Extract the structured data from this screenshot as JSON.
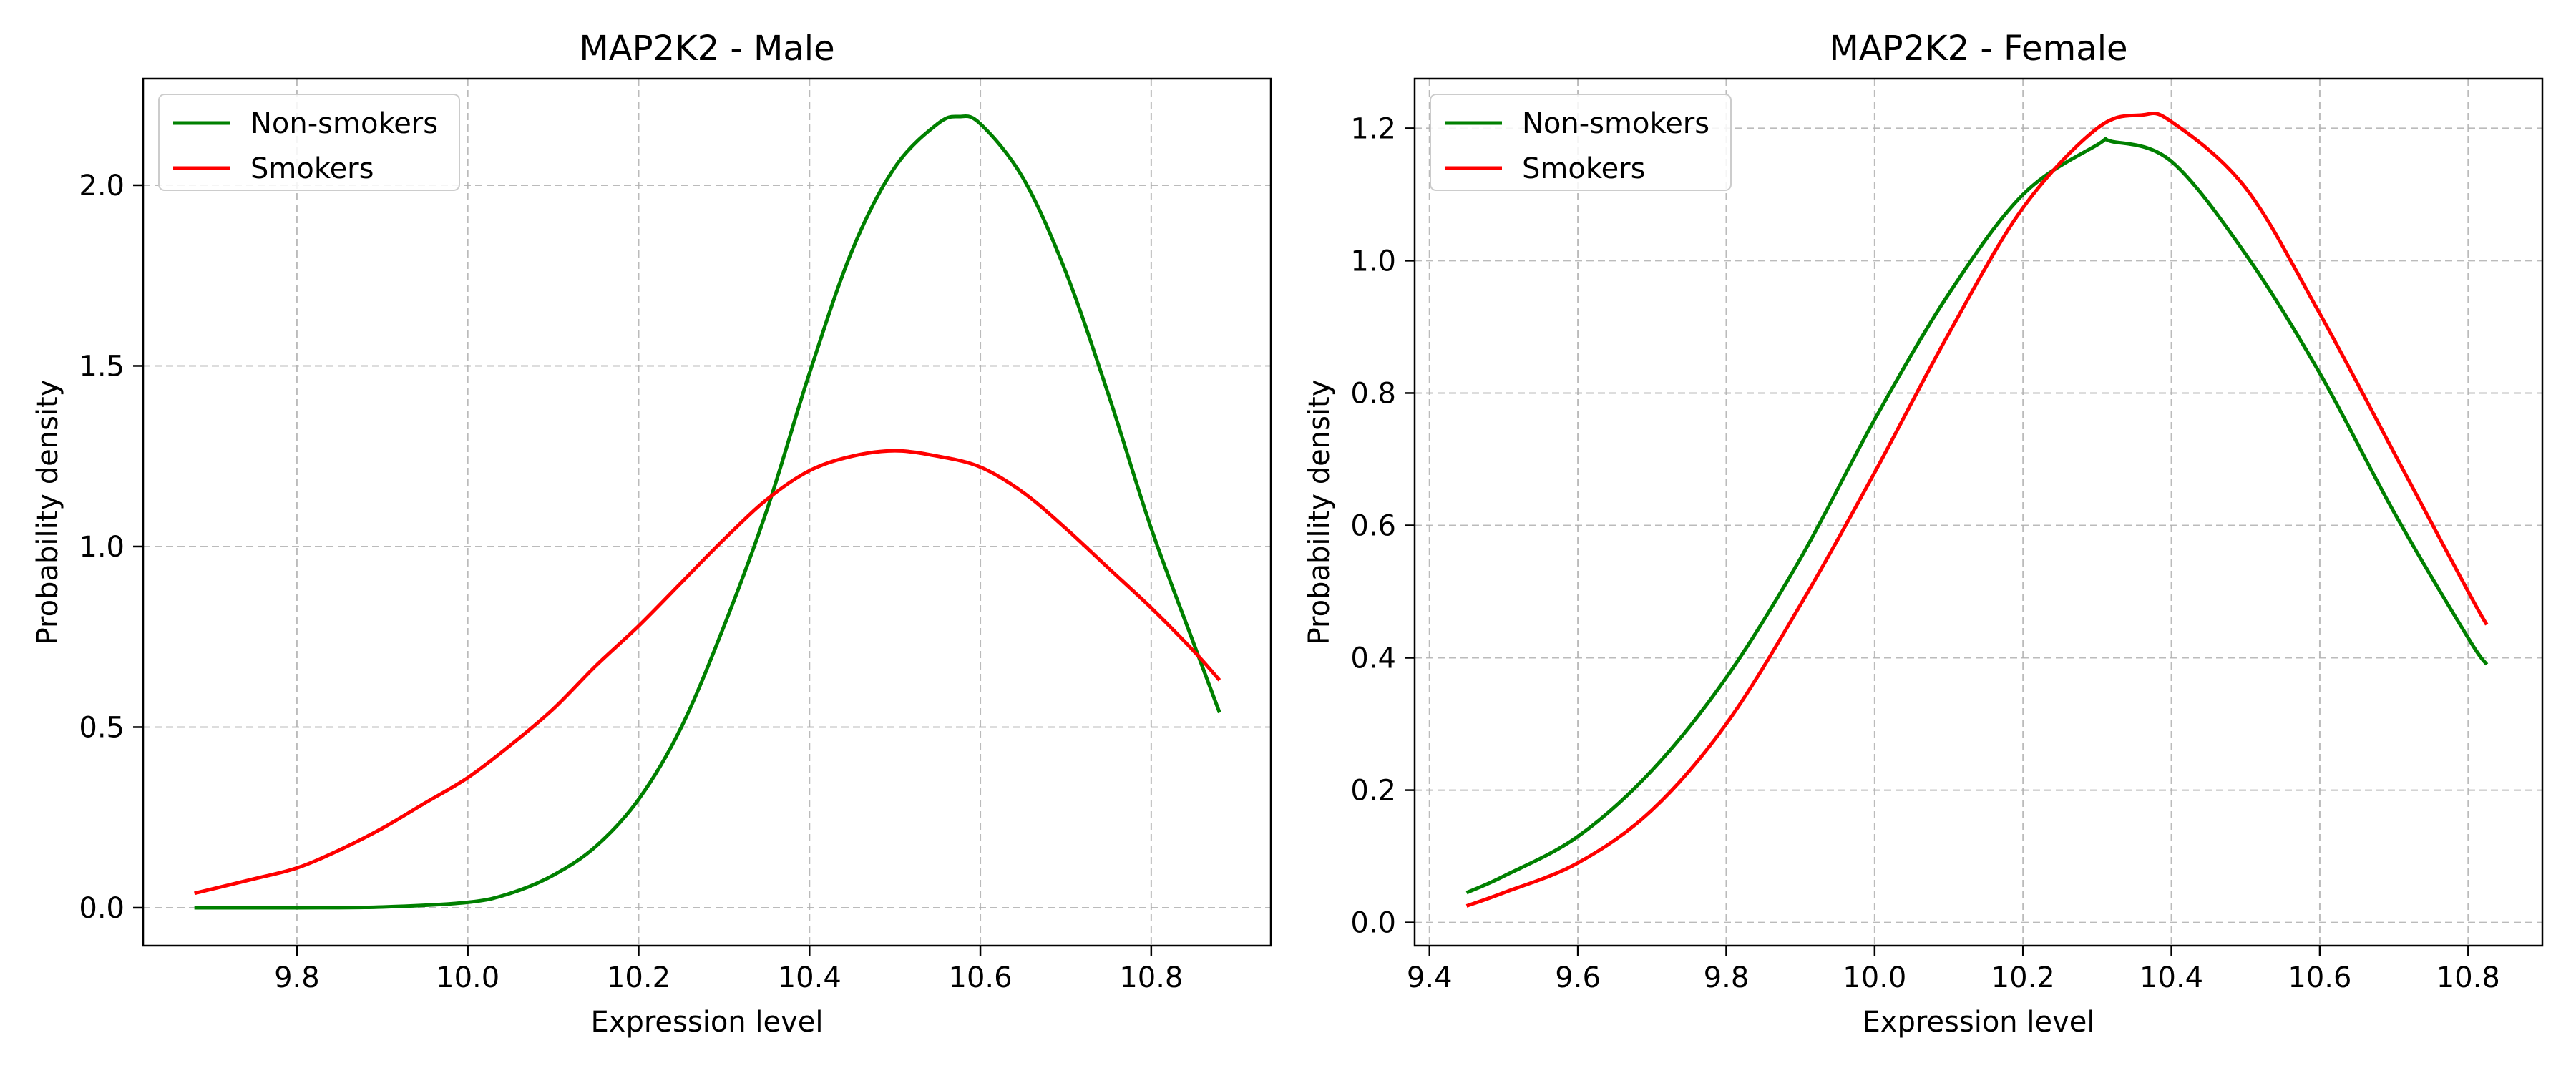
{
  "chart_data": [
    {
      "type": "line",
      "title": "MAP2K2 - Male",
      "xlabel": "Expression level",
      "ylabel": "Probability density",
      "xlim": [
        9.62,
        10.94
      ],
      "ylim": [
        -0.105,
        2.295
      ],
      "xticks": [
        9.8,
        10.0,
        10.2,
        10.4,
        10.6,
        10.8
      ],
      "xtick_labels": [
        "9.8",
        "10.0",
        "10.2",
        "10.4",
        "10.6",
        "10.8"
      ],
      "yticks": [
        0.0,
        0.5,
        1.0,
        1.5,
        2.0
      ],
      "ytick_labels": [
        "0.0",
        "0.5",
        "1.0",
        "1.5",
        "2.0"
      ],
      "grid": true,
      "legend_position": "top-left",
      "series": [
        {
          "name": "Non-smokers",
          "color": "#008000",
          "x": [
            9.68,
            9.8,
            9.9,
            10.0,
            10.05,
            10.1,
            10.15,
            10.2,
            10.25,
            10.3,
            10.35,
            10.4,
            10.45,
            10.5,
            10.55,
            10.575,
            10.6,
            10.65,
            10.7,
            10.75,
            10.8,
            10.85,
            10.88
          ],
          "y": [
            0.0,
            0.0,
            0.002,
            0.015,
            0.04,
            0.09,
            0.17,
            0.3,
            0.5,
            0.78,
            1.1,
            1.48,
            1.82,
            2.05,
            2.17,
            2.19,
            2.17,
            2.02,
            1.76,
            1.42,
            1.05,
            0.73,
            0.54
          ]
        },
        {
          "name": "Smokers",
          "color": "#ff0000",
          "x": [
            9.68,
            9.75,
            9.8,
            9.85,
            9.9,
            9.95,
            10.0,
            10.05,
            10.1,
            10.15,
            10.2,
            10.25,
            10.3,
            10.35,
            10.4,
            10.45,
            10.5,
            10.55,
            10.6,
            10.65,
            10.7,
            10.75,
            10.8,
            10.85,
            10.88
          ],
          "y": [
            0.04,
            0.08,
            0.11,
            0.16,
            0.22,
            0.29,
            0.36,
            0.45,
            0.55,
            0.67,
            0.78,
            0.9,
            1.02,
            1.13,
            1.21,
            1.25,
            1.265,
            1.25,
            1.22,
            1.15,
            1.05,
            0.94,
            0.83,
            0.71,
            0.63
          ]
        }
      ]
    },
    {
      "type": "line",
      "title": "MAP2K2 - Female",
      "xlabel": "Expression level",
      "ylabel": "Probability density",
      "xlim": [
        9.38,
        10.9
      ],
      "ylim": [
        -0.035,
        1.275
      ],
      "xticks": [
        9.4,
        9.6,
        9.8,
        10.0,
        10.2,
        10.4,
        10.6,
        10.8
      ],
      "xtick_labels": [
        "9.4",
        "9.6",
        "9.8",
        "10.0",
        "10.2",
        "10.4",
        "10.6",
        "10.8"
      ],
      "yticks": [
        0.0,
        0.2,
        0.4,
        0.6,
        0.8,
        1.0,
        1.2
      ],
      "ytick_labels": [
        "0.0",
        "0.2",
        "0.4",
        "0.6",
        "0.8",
        "1.0",
        "1.2"
      ],
      "grid": true,
      "legend_position": "top-left",
      "series": [
        {
          "name": "Non-smokers",
          "color": "#008000",
          "x": [
            9.45,
            9.5,
            9.6,
            9.7,
            9.8,
            9.9,
            10.0,
            10.1,
            10.2,
            10.3,
            10.32,
            10.4,
            10.5,
            10.6,
            10.7,
            10.8,
            10.825
          ],
          "y": [
            0.045,
            0.07,
            0.13,
            0.23,
            0.37,
            0.55,
            0.76,
            0.95,
            1.1,
            1.175,
            1.18,
            1.15,
            1.01,
            0.83,
            0.62,
            0.43,
            0.39
          ]
        },
        {
          "name": "Smokers",
          "color": "#ff0000",
          "x": [
            9.45,
            9.5,
            9.6,
            9.7,
            9.8,
            9.9,
            10.0,
            10.1,
            10.2,
            10.3,
            10.36,
            10.4,
            10.5,
            10.6,
            10.7,
            10.8,
            10.825
          ],
          "y": [
            0.025,
            0.045,
            0.09,
            0.17,
            0.3,
            0.48,
            0.68,
            0.89,
            1.08,
            1.2,
            1.22,
            1.21,
            1.11,
            0.92,
            0.71,
            0.5,
            0.45
          ]
        }
      ]
    }
  ]
}
